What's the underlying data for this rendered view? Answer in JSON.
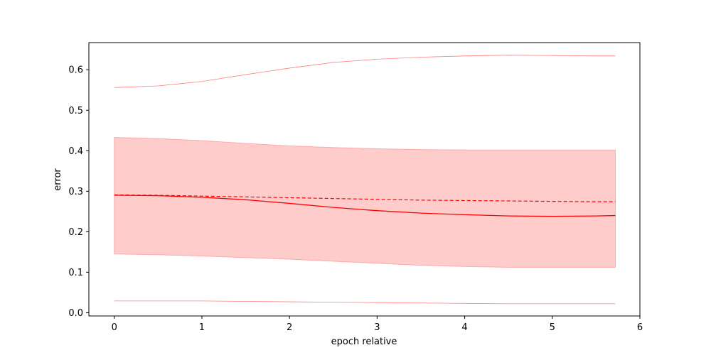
{
  "chart_data": {
    "type": "line",
    "title": "",
    "xlabel": "epoch relative",
    "ylabel": "error",
    "xlim": [
      -0.29,
      6.0
    ],
    "ylim": [
      -0.008,
      0.667
    ],
    "x_ticks": [
      0,
      1,
      2,
      3,
      4,
      5,
      6
    ],
    "y_ticks": [
      0.0,
      0.1,
      0.2,
      0.3,
      0.4,
      0.5,
      0.6
    ],
    "x_tick_labels": [
      "0",
      "1",
      "2",
      "3",
      "4",
      "5",
      "6"
    ],
    "y_tick_labels": [
      "0.0",
      "0.1",
      "0.2",
      "0.3",
      "0.4",
      "0.5",
      "0.6"
    ],
    "grid": false,
    "legend": "none",
    "color": "#ff0000",
    "x": [
      0,
      0.5,
      1,
      1.5,
      2,
      2.5,
      3,
      3.5,
      4,
      4.5,
      5,
      5.5,
      5.72
    ],
    "series": [
      {
        "role": "median",
        "style": "solid",
        "values": [
          0.29,
          0.289,
          0.285,
          0.279,
          0.27,
          0.26,
          0.252,
          0.246,
          0.242,
          0.239,
          0.238,
          0.239,
          0.24
        ]
      },
      {
        "role": "mean",
        "style": "dashed",
        "values": [
          0.291,
          0.29,
          0.288,
          0.286,
          0.284,
          0.282,
          0.28,
          0.278,
          0.277,
          0.276,
          0.275,
          0.274,
          0.274
        ]
      },
      {
        "role": "band-upper",
        "style": "fill",
        "values": [
          0.433,
          0.43,
          0.425,
          0.418,
          0.412,
          0.408,
          0.405,
          0.403,
          0.402,
          0.402,
          0.402,
          0.402,
          0.402
        ]
      },
      {
        "role": "band-lower",
        "style": "fill",
        "values": [
          0.145,
          0.143,
          0.14,
          0.136,
          0.132,
          0.127,
          0.122,
          0.117,
          0.114,
          0.112,
          0.112,
          0.112,
          0.112
        ]
      },
      {
        "role": "max",
        "style": "thin",
        "values": [
          0.556,
          0.56,
          0.571,
          0.588,
          0.604,
          0.618,
          0.626,
          0.631,
          0.634,
          0.636,
          0.635,
          0.634,
          0.634
        ]
      },
      {
        "role": "min",
        "style": "thin",
        "values": [
          0.029,
          0.029,
          0.029,
          0.028,
          0.027,
          0.026,
          0.025,
          0.024,
          0.023,
          0.022,
          0.022,
          0.022,
          0.022
        ]
      }
    ]
  }
}
